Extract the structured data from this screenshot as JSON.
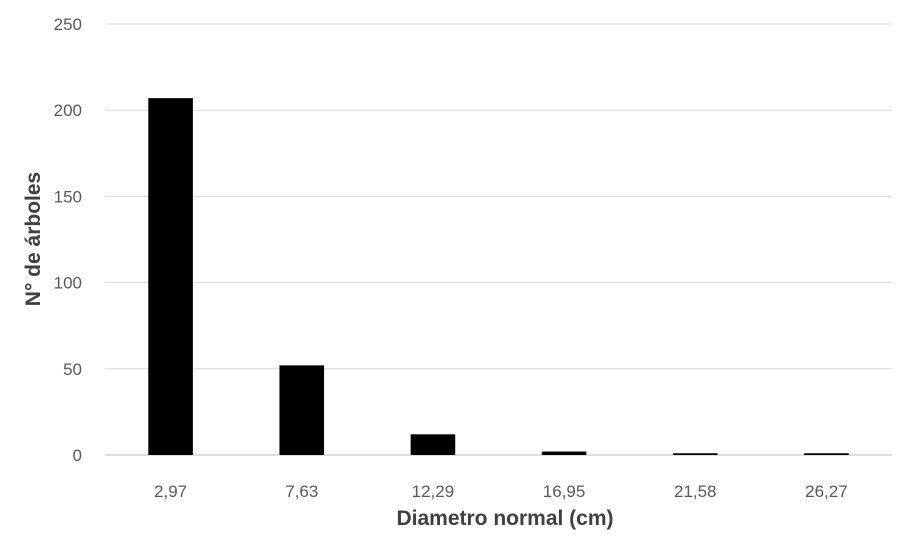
{
  "chart_data": {
    "type": "bar",
    "categories": [
      "2,97",
      "7,63",
      "12,29",
      "16,95",
      "21,58",
      "26,27"
    ],
    "values": [
      207,
      52,
      12,
      2,
      1,
      1
    ],
    "xlabel": "Diametro normal (cm)",
    "ylabel": "N° de árboles",
    "ylim": [
      0,
      250
    ],
    "yticks": [
      0,
      50,
      100,
      150,
      200,
      250
    ],
    "grid": true,
    "legend": "none",
    "bar_color": "#000000",
    "grid_color": "#d9d9d9"
  }
}
